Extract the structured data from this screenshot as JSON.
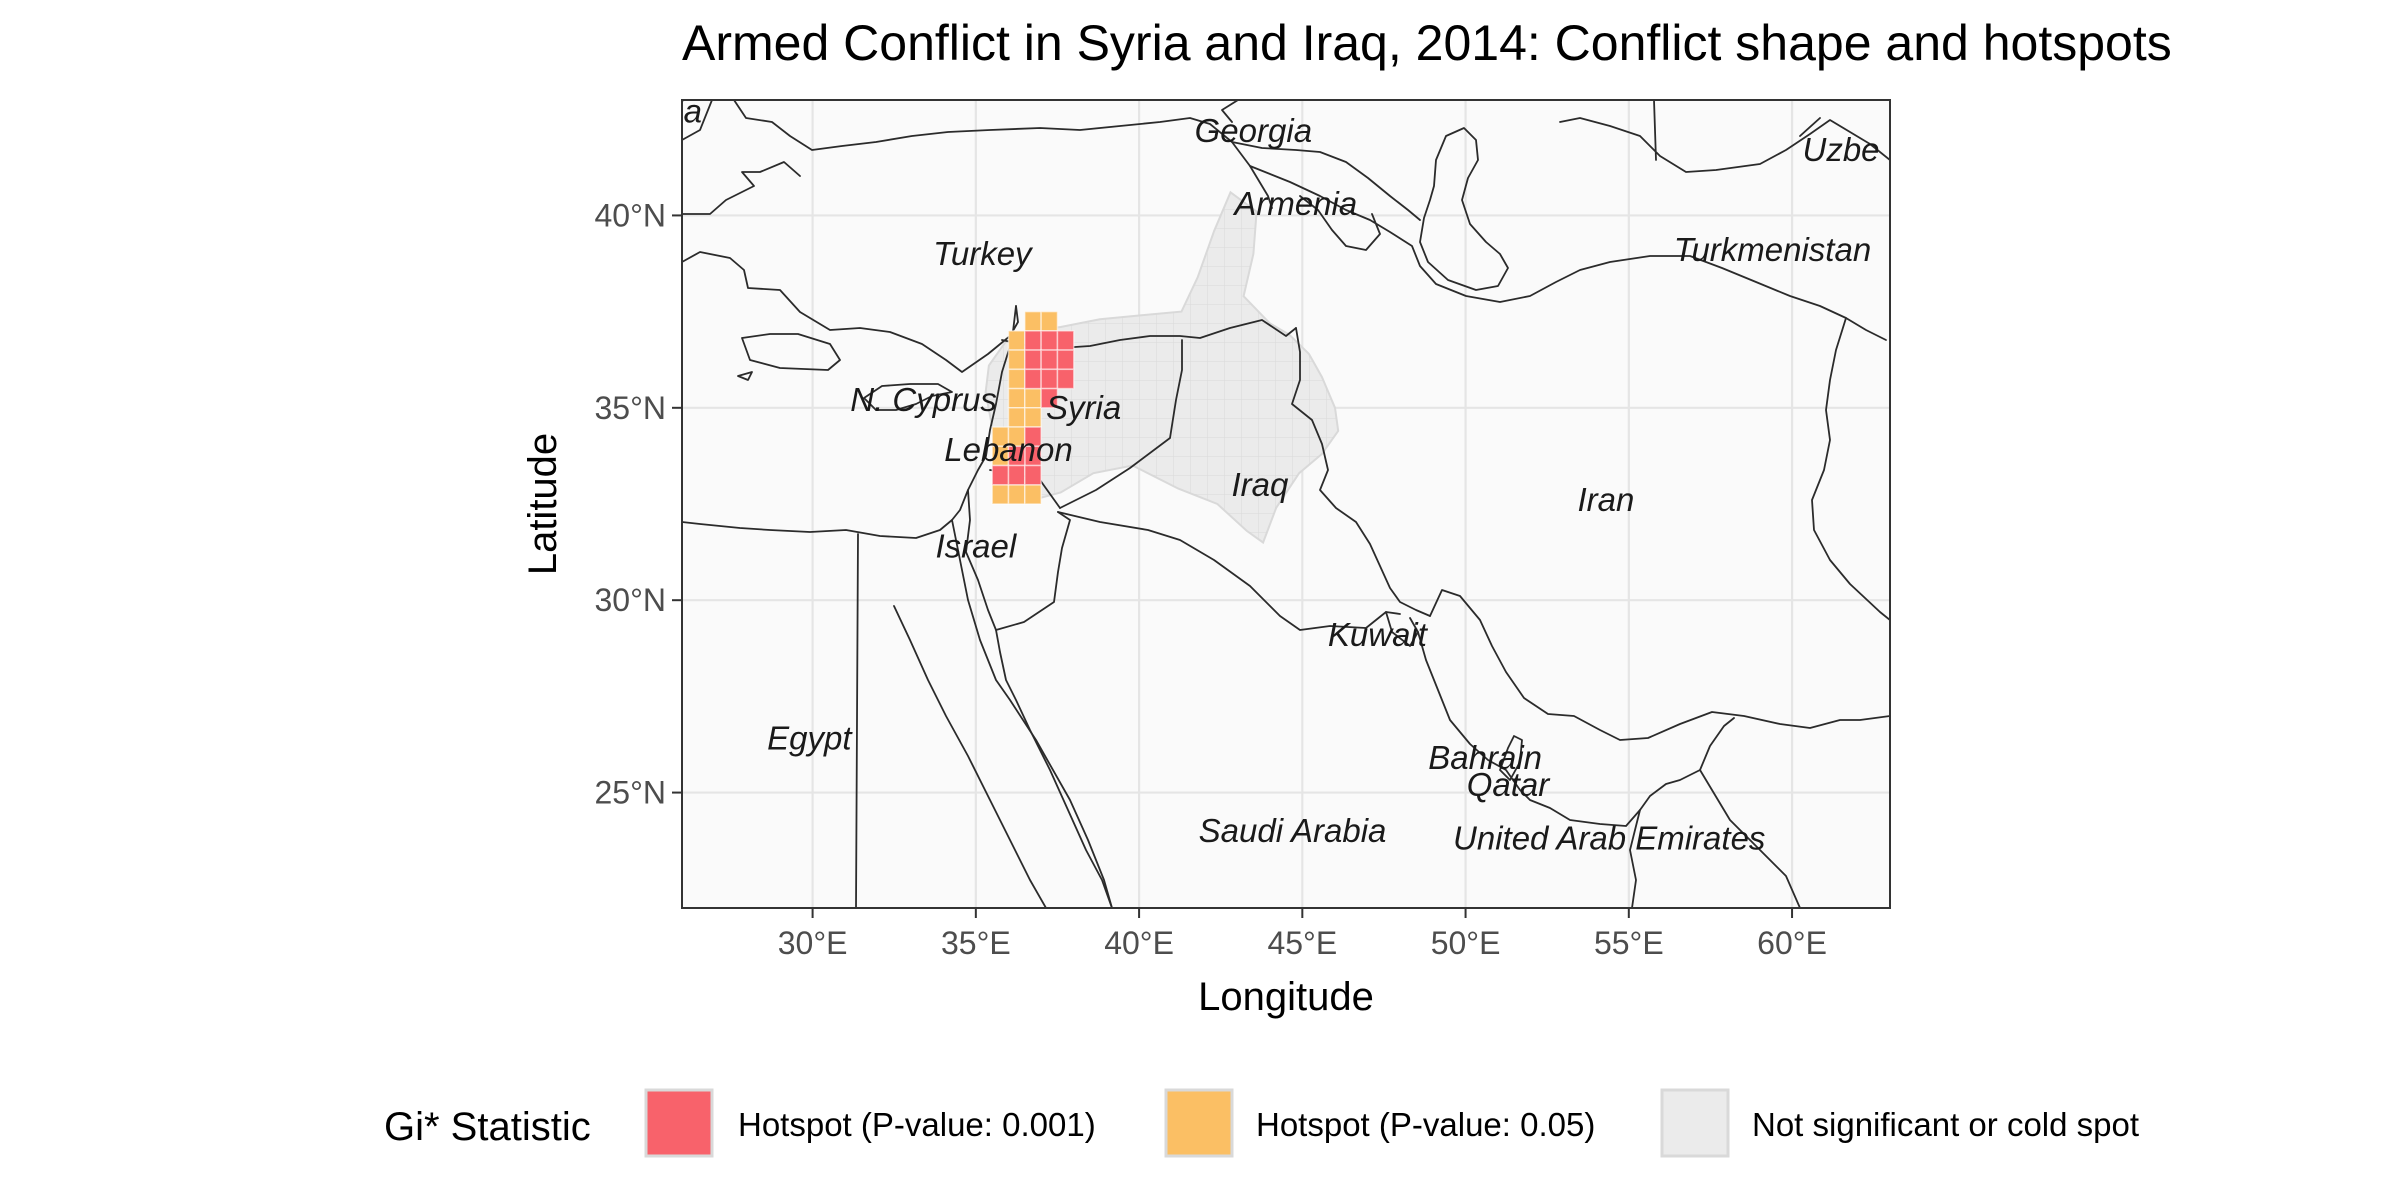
{
  "title": "Armed Conflict in Syria and Iraq, 2014: Conflict shape and hotspots",
  "axes": {
    "xlabel": "Longitude",
    "ylabel": "Latitude",
    "xlim": [
      26,
      63
    ],
    "ylim": [
      22,
      43
    ],
    "x_ticks": [
      {
        "value": 30,
        "label": "30°E"
      },
      {
        "value": 35,
        "label": "35°E"
      },
      {
        "value": 40,
        "label": "40°E"
      },
      {
        "value": 45,
        "label": "45°E"
      },
      {
        "value": 50,
        "label": "50°E"
      },
      {
        "value": 55,
        "label": "55°E"
      },
      {
        "value": 60,
        "label": "60°E"
      }
    ],
    "y_ticks": [
      {
        "value": 25,
        "label": "25°N"
      },
      {
        "value": 30,
        "label": "30°N"
      },
      {
        "value": 35,
        "label": "35°N"
      },
      {
        "value": 40,
        "label": "40°N"
      }
    ]
  },
  "colors": {
    "hotspot_001": "#f8626b",
    "hotspot_005": "#fbbf64",
    "not_significant": "#ebebeb",
    "panel_bg": "#fafafa",
    "grid": "#e5e5e5",
    "border": "#2b2b2b"
  },
  "country_labels": [
    {
      "name": "ria",
      "lon": 26.05,
      "lat": 42.7
    },
    {
      "name": "Georgia",
      "lon": 43.5,
      "lat": 42.2
    },
    {
      "name": "Uzbe",
      "lon": 61.5,
      "lat": 41.7
    },
    {
      "name": "Armenia",
      "lon": 44.8,
      "lat": 40.3
    },
    {
      "name": "Turkey",
      "lon": 35.2,
      "lat": 39.0
    },
    {
      "name": "Turkmenistan",
      "lon": 59.4,
      "lat": 39.1
    },
    {
      "name": "N. Cyprus",
      "lon": 33.4,
      "lat": 35.2
    },
    {
      "name": "Syria",
      "lon": 38.3,
      "lat": 35.0
    },
    {
      "name": "Lebanon",
      "lon": 36.0,
      "lat": 33.9
    },
    {
      "name": "Iraq",
      "lon": 43.7,
      "lat": 33.0
    },
    {
      "name": "Iran",
      "lon": 54.3,
      "lat": 32.6
    },
    {
      "name": "Israel",
      "lon": 35.0,
      "lat": 31.4
    },
    {
      "name": "Kuwait",
      "lon": 47.3,
      "lat": 29.1
    },
    {
      "name": "Egypt",
      "lon": 29.9,
      "lat": 26.4
    },
    {
      "name": "Bahrain",
      "lon": 50.6,
      "lat": 25.9
    },
    {
      "name": "Qatar",
      "lon": 51.3,
      "lat": 25.2
    },
    {
      "name": "Saudi Arabia",
      "lon": 44.7,
      "lat": 24.0
    },
    {
      "name": "United Arab Emirates",
      "lon": 54.4,
      "lat": 23.8
    }
  ],
  "conflict_shape": [
    [
      42.8,
      40.6
    ],
    [
      43.6,
      40.1
    ],
    [
      43.5,
      39.0
    ],
    [
      43.2,
      37.9
    ],
    [
      44.0,
      37.2
    ],
    [
      44.6,
      36.9
    ],
    [
      45.2,
      36.4
    ],
    [
      45.6,
      35.8
    ],
    [
      46.0,
      35.0
    ],
    [
      46.1,
      34.4
    ],
    [
      45.6,
      33.8
    ],
    [
      44.9,
      33.3
    ],
    [
      44.2,
      32.4
    ],
    [
      43.8,
      31.5
    ],
    [
      43.3,
      31.8
    ],
    [
      42.4,
      32.5
    ],
    [
      41.2,
      32.9
    ],
    [
      39.8,
      33.5
    ],
    [
      38.6,
      33.3
    ],
    [
      37.6,
      32.8
    ],
    [
      36.7,
      32.6
    ],
    [
      35.8,
      32.6
    ],
    [
      35.6,
      33.5
    ],
    [
      35.5,
      34.5
    ],
    [
      35.3,
      35.4
    ],
    [
      35.4,
      36.1
    ],
    [
      35.9,
      36.7
    ],
    [
      36.6,
      37.0
    ],
    [
      37.6,
      37.1
    ],
    [
      38.8,
      37.3
    ],
    [
      40.0,
      37.4
    ],
    [
      41.3,
      37.5
    ],
    [
      41.8,
      38.4
    ],
    [
      42.3,
      39.6
    ]
  ],
  "hotspot_cells": {
    "cell_size": 0.5,
    "p001": [
      [
        36.5,
        36.5
      ],
      [
        37.0,
        36.5
      ],
      [
        37.5,
        36.5
      ],
      [
        36.5,
        36.0
      ],
      [
        37.0,
        36.0
      ],
      [
        37.5,
        36.0
      ],
      [
        36.5,
        35.5
      ],
      [
        37.0,
        35.5
      ],
      [
        37.5,
        35.5
      ],
      [
        37.0,
        35.0
      ],
      [
        36.5,
        34.0
      ],
      [
        36.5,
        33.5
      ],
      [
        36.0,
        33.5
      ],
      [
        35.5,
        33.0
      ],
      [
        36.0,
        33.0
      ],
      [
        36.5,
        33.0
      ]
    ],
    "p005": [
      [
        36.5,
        37.0
      ],
      [
        37.0,
        37.0
      ],
      [
        36.0,
        36.5
      ],
      [
        36.0,
        36.0
      ],
      [
        36.0,
        35.5
      ],
      [
        36.0,
        35.0
      ],
      [
        36.5,
        35.0
      ],
      [
        36.0,
        34.5
      ],
      [
        36.5,
        34.5
      ],
      [
        35.5,
        34.0
      ],
      [
        36.0,
        34.0
      ],
      [
        35.5,
        33.5
      ],
      [
        35.5,
        32.5
      ],
      [
        36.0,
        32.5
      ],
      [
        36.5,
        32.5
      ]
    ]
  },
  "legend": {
    "title": "Gi* Statistic",
    "items": [
      {
        "label": "Hotspot (P-value: 0.001)",
        "color": "#f8626b"
      },
      {
        "label": "Hotspot (P-value: 0.05)",
        "color": "#fbbf64"
      },
      {
        "label": "Not significant or cold spot",
        "color": "#ebebeb"
      }
    ]
  }
}
